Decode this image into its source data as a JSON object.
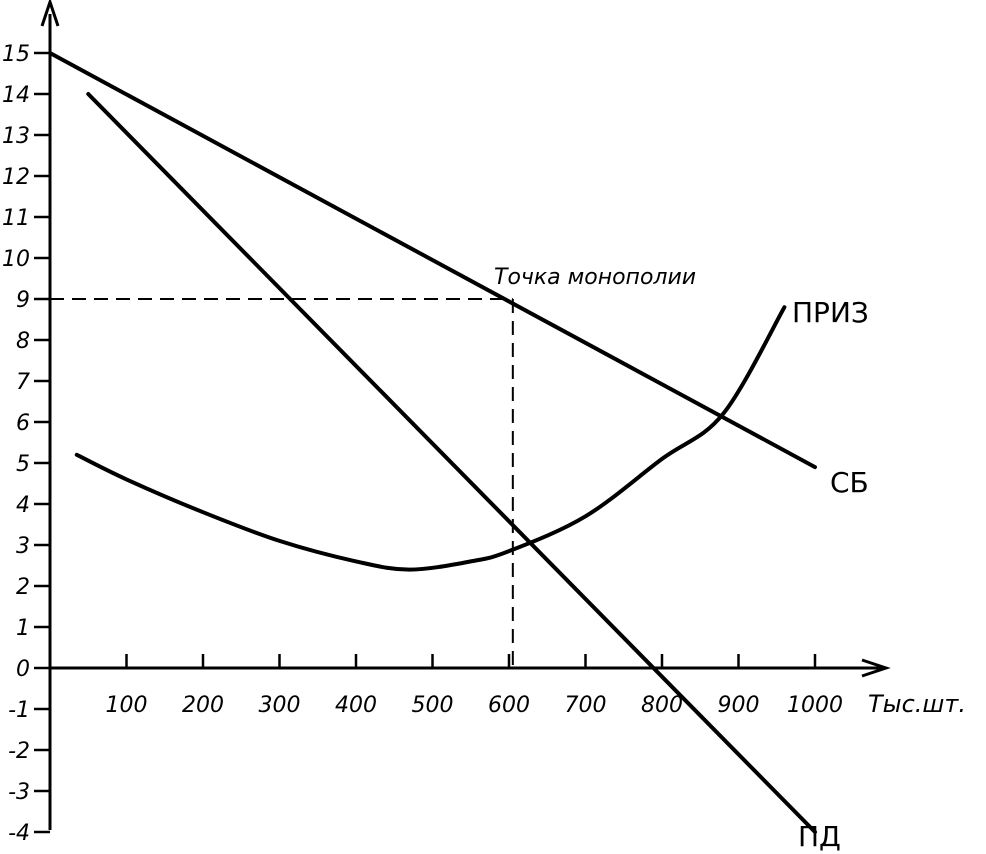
{
  "chart_data": {
    "type": "line",
    "title": "",
    "xlabel": "Тыс.шт.",
    "ylabel": "",
    "xlim": [
      0,
      1100
    ],
    "ylim": [
      -4,
      16
    ],
    "x_ticks": [
      100,
      200,
      300,
      400,
      500,
      600,
      700,
      800,
      900,
      1000
    ],
    "y_ticks": [
      -4,
      -3,
      -2,
      -1,
      0,
      1,
      2,
      3,
      4,
      5,
      6,
      7,
      8,
      9,
      10,
      11,
      12,
      13,
      14,
      15
    ],
    "y_tick_labels": [
      "-4",
      "-3",
      "-2",
      "-1",
      "0",
      "1",
      "2",
      "3",
      "4",
      "5",
      "6",
      "7",
      "8",
      "9",
      "10",
      "11",
      "12",
      "13",
      "14",
      "15"
    ],
    "grid": false,
    "series": [
      {
        "name": "СБ",
        "shape": "line",
        "x": [
          0,
          1000
        ],
        "y": [
          15,
          4.9
        ]
      },
      {
        "name": "ПД",
        "shape": "line",
        "x": [
          50,
          1000
        ],
        "y": [
          14,
          -4
        ]
      },
      {
        "name": "ПРИЗ",
        "shape": "curve",
        "x": [
          35,
          100,
          200,
          300,
          400,
          470,
          550,
          600,
          700,
          800,
          880,
          960
        ],
        "y": [
          5.2,
          4.6,
          3.8,
          3.1,
          2.6,
          2.4,
          2.6,
          2.85,
          3.7,
          5.1,
          6.2,
          8.8
        ]
      }
    ],
    "annotations": [
      {
        "text": "Точка монополии",
        "x": 605,
        "y": 8.9
      }
    ],
    "guides": [
      {
        "from": [
          0,
          9
        ],
        "to": [
          605,
          9
        ]
      },
      {
        "from": [
          605,
          9
        ],
        "to": [
          605,
          0
        ]
      }
    ]
  }
}
